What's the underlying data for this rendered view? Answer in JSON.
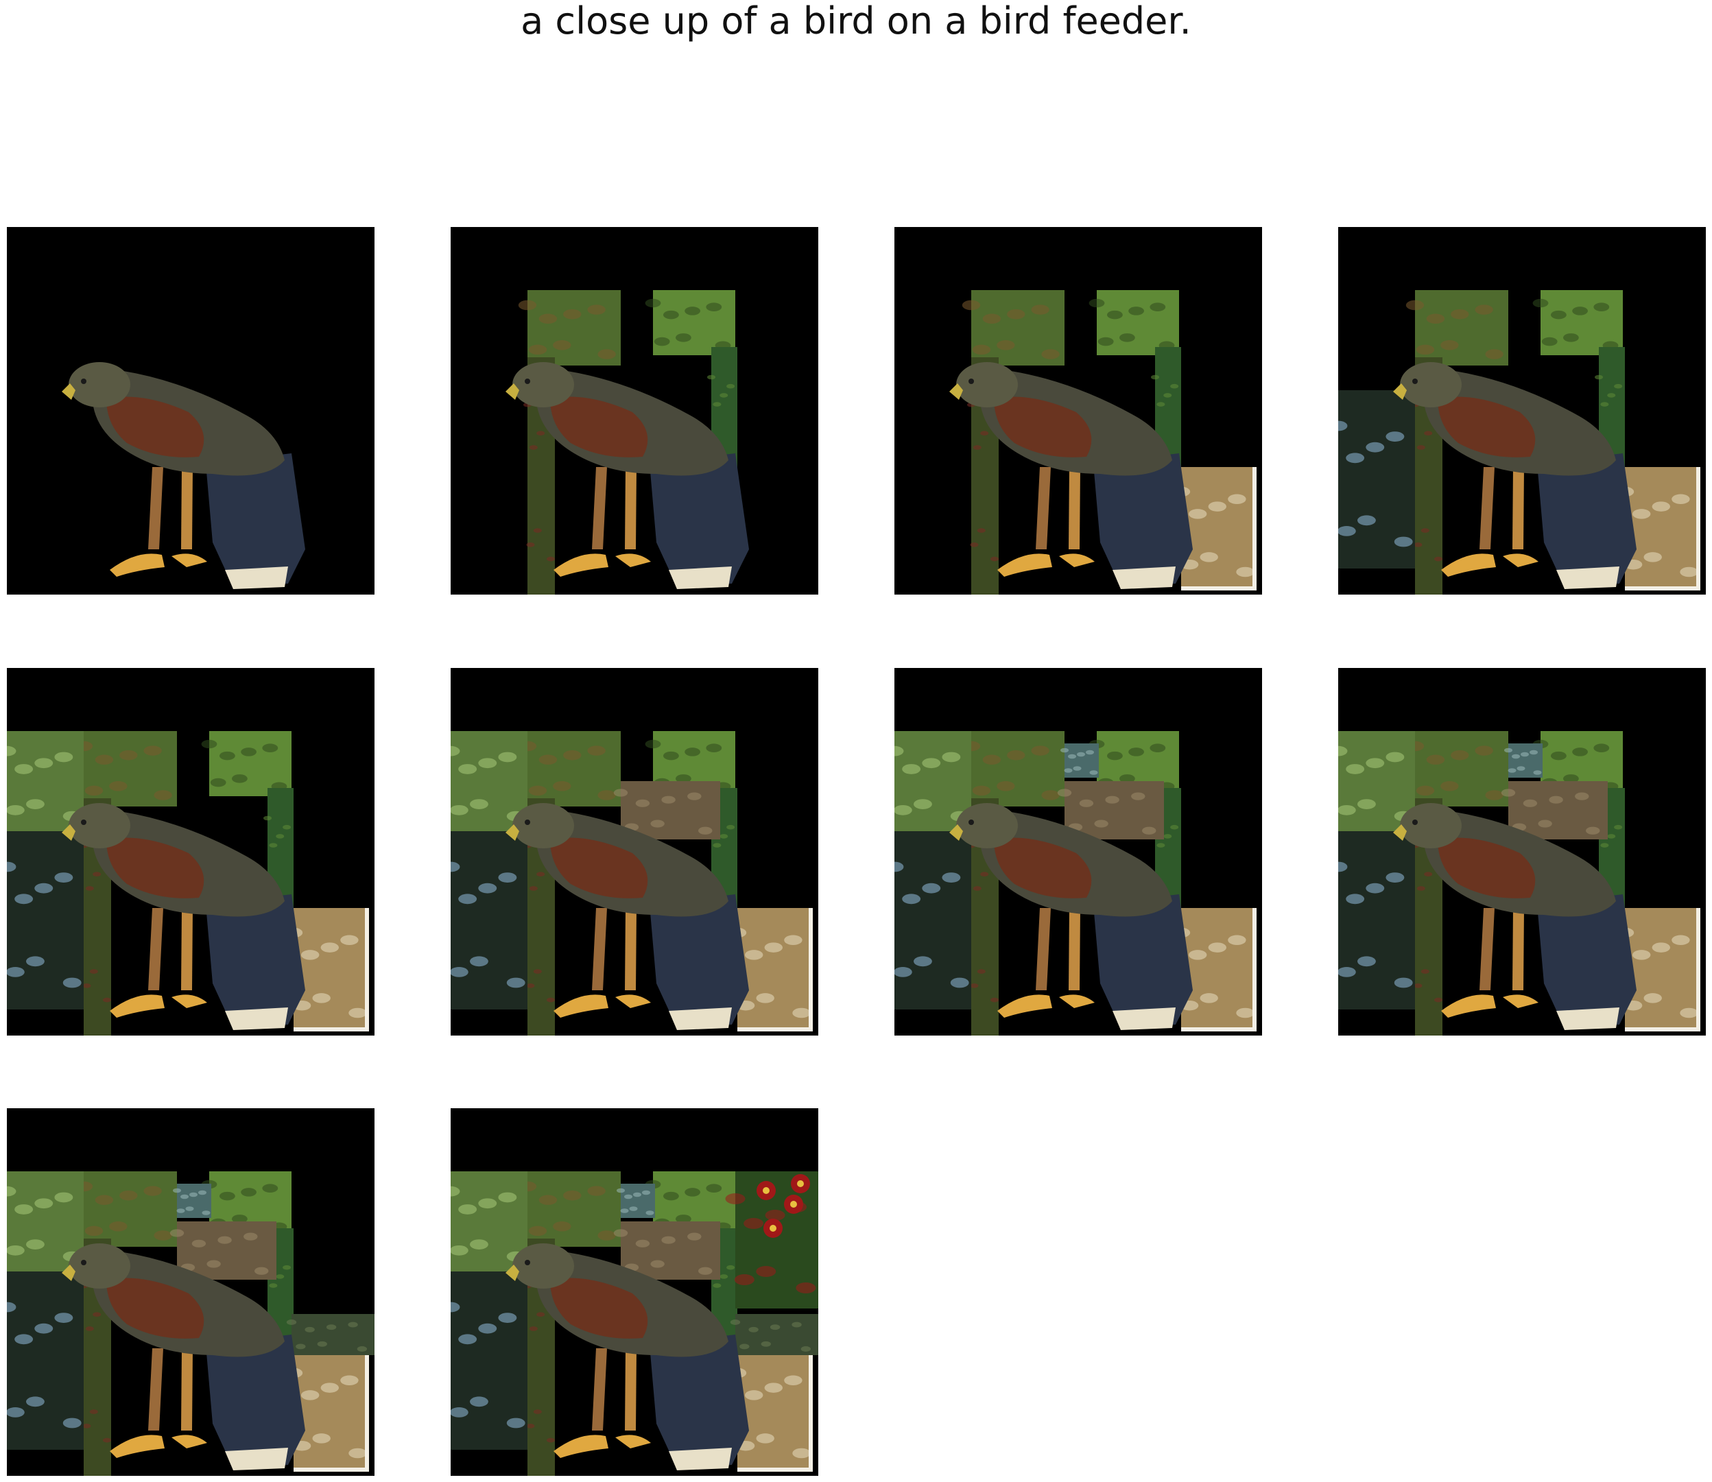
{
  "title": "a close up of a bird on a bird feeder.",
  "colors": {
    "background": "#000000",
    "page": "#ffffff"
  },
  "panels": [
    {
      "step": 1,
      "patches": []
    },
    {
      "step": 2,
      "patches": [
        "foliage-top-a",
        "foliage-top-b",
        "foliage-left-strip",
        "foliage-right-strip"
      ]
    },
    {
      "step": 3,
      "patches": [
        "foliage-top-a",
        "foliage-top-b",
        "foliage-left-strip",
        "foliage-right-strip",
        "straw-bottom-right"
      ]
    },
    {
      "step": 4,
      "patches": [
        "foliage-top-a",
        "foliage-top-b",
        "foliage-left-strip",
        "foliage-right-strip",
        "straw-bottom-right",
        "dark-leaves-left"
      ]
    },
    {
      "step": 5,
      "patches": [
        "foliage-top-a",
        "foliage-top-b",
        "foliage-left-strip",
        "foliage-right-strip",
        "straw-bottom-right",
        "dark-leaves-left",
        "green-tree-top-left"
      ]
    },
    {
      "step": 6,
      "patches": [
        "foliage-top-a",
        "foliage-top-b",
        "foliage-left-strip",
        "foliage-right-strip",
        "straw-bottom-right",
        "dark-leaves-left",
        "green-tree-top-left",
        "blurry-center"
      ]
    },
    {
      "step": 7,
      "patches": [
        "foliage-top-a",
        "foliage-top-b",
        "foliage-left-strip",
        "foliage-right-strip",
        "straw-bottom-right",
        "dark-leaves-left",
        "green-tree-top-left",
        "blurry-center",
        "small-blue-patch"
      ]
    },
    {
      "step": 8,
      "patches": [
        "foliage-top-a",
        "foliage-top-b",
        "foliage-left-strip",
        "foliage-right-strip",
        "straw-bottom-right",
        "dark-leaves-left",
        "green-tree-top-left",
        "blurry-center",
        "small-blue-patch"
      ]
    },
    {
      "step": 9,
      "patches": [
        "foliage-top-a",
        "foliage-top-b",
        "foliage-left-strip",
        "foliage-right-strip",
        "straw-bottom-right",
        "dark-leaves-left",
        "green-tree-top-left",
        "blurry-center",
        "small-blue-patch",
        "shrub-right"
      ]
    },
    {
      "step": 10,
      "patches": [
        "foliage-top-a",
        "foliage-top-b",
        "foliage-left-strip",
        "foliage-right-strip",
        "straw-bottom-right",
        "dark-leaves-left",
        "green-tree-top-left",
        "blurry-center",
        "small-blue-patch",
        "shrub-right",
        "red-flowers-top-right"
      ]
    }
  ]
}
